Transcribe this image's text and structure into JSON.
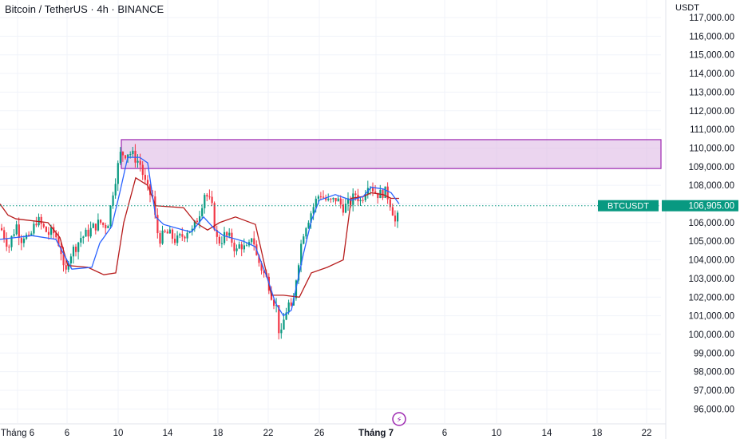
{
  "header": {
    "title": "Bitcoin / TetherUS · 4h · BINANCE",
    "unit": "USDT"
  },
  "price_tag": {
    "symbol": "BTCUSDT",
    "price": "106,905.00",
    "value": 106905,
    "color": "#089981"
  },
  "colors": {
    "up": "#089981",
    "down": "#f23645",
    "fast_line": "#2962ff",
    "slow_line": "#b71c1c",
    "zone_fill": "#e1bee7",
    "zone_border": "#9c27b0",
    "event_icon": "#9c27b0"
  },
  "chart_data": {
    "type": "candlestick",
    "y_axis": {
      "range": [
        95700,
        117500
      ],
      "ticks": [
        "117,000.00",
        "116,000.00",
        "115,000.00",
        "114,000.00",
        "113,000.00",
        "112,000.00",
        "111,000.00",
        "110,000.00",
        "109,000.00",
        "108,000.00",
        "107,000.00",
        "106,000.00",
        "105,000.00",
        "104,000.00",
        "103,000.00",
        "102,000.00",
        "101,000.00",
        "100,000.00",
        "99,000.00",
        "98,000.00",
        "97,000.00",
        "96,000.00"
      ]
    },
    "x_axis": {
      "ticks": [
        "Tháng 6",
        "6",
        "10",
        "14",
        "18",
        "22",
        "26",
        "Tháng 7",
        "6",
        "10",
        "14",
        "18",
        "22"
      ],
      "bold": [
        "Tháng 7"
      ]
    },
    "resistance_zone": {
      "low": 108900,
      "high": 110450
    },
    "event_marker": {
      "label": "⚡",
      "position": "Tháng 7"
    },
    "price_path": [
      [
        0,
        105700
      ],
      [
        5,
        105200
      ],
      [
        10,
        104700
      ],
      [
        15,
        105400
      ],
      [
        20,
        105900
      ],
      [
        25,
        105100
      ],
      [
        30,
        105400
      ],
      [
        35,
        105000
      ],
      [
        40,
        105600
      ],
      [
        45,
        106200
      ],
      [
        50,
        105900
      ],
      [
        55,
        105600
      ],
      [
        60,
        105400
      ],
      [
        65,
        105500
      ],
      [
        70,
        105200
      ],
      [
        75,
        104600
      ],
      [
        80,
        102900
      ],
      [
        85,
        104200
      ],
      [
        90,
        104500
      ],
      [
        95,
        104800
      ],
      [
        100,
        105200
      ],
      [
        105,
        105300
      ],
      [
        110,
        105500
      ],
      [
        115,
        105700
      ],
      [
        120,
        105900
      ],
      [
        125,
        106000
      ],
      [
        130,
        105800
      ],
      [
        135,
        106100
      ],
      [
        140,
        107600
      ],
      [
        145,
        108700
      ],
      [
        150,
        109700
      ],
      [
        155,
        109700
      ],
      [
        160,
        109800
      ],
      [
        165,
        109600
      ],
      [
        170,
        109400
      ],
      [
        175,
        109100
      ],
      [
        180,
        108200
      ],
      [
        185,
        107600
      ],
      [
        190,
        107400
      ],
      [
        195,
        105600
      ],
      [
        200,
        105100
      ],
      [
        205,
        105400
      ],
      [
        210,
        105400
      ],
      [
        215,
        105200
      ],
      [
        220,
        105000
      ],
      [
        225,
        105200
      ],
      [
        230,
        105400
      ],
      [
        235,
        105700
      ],
      [
        240,
        105500
      ],
      [
        245,
        106100
      ],
      [
        250,
        106700
      ],
      [
        255,
        107600
      ],
      [
        260,
        107300
      ],
      [
        265,
        106700
      ],
      [
        270,
        105100
      ],
      [
        275,
        105000
      ],
      [
        280,
        105300
      ],
      [
        285,
        105200
      ],
      [
        290,
        105000
      ],
      [
        295,
        104400
      ],
      [
        300,
        104900
      ],
      [
        305,
        104600
      ],
      [
        310,
        104500
      ],
      [
        315,
        105500
      ],
      [
        320,
        104200
      ],
      [
        325,
        103700
      ],
      [
        330,
        103200
      ],
      [
        335,
        102800
      ],
      [
        340,
        102000
      ],
      [
        345,
        101500
      ],
      [
        350,
        99600
      ],
      [
        355,
        100900
      ],
      [
        360,
        101700
      ],
      [
        365,
        101100
      ],
      [
        370,
        103100
      ],
      [
        375,
        104600
      ],
      [
        380,
        105700
      ],
      [
        385,
        106200
      ],
      [
        390,
        106700
      ],
      [
        395,
        107200
      ],
      [
        400,
        107600
      ],
      [
        405,
        107300
      ],
      [
        410,
        107100
      ],
      [
        415,
        107100
      ],
      [
        420,
        107300
      ],
      [
        425,
        107000
      ],
      [
        430,
        106800
      ],
      [
        435,
        107000
      ],
      [
        440,
        107200
      ],
      [
        445,
        107600
      ],
      [
        450,
        107100
      ],
      [
        455,
        107600
      ],
      [
        460,
        108200
      ],
      [
        465,
        107900
      ],
      [
        470,
        107600
      ],
      [
        475,
        107500
      ],
      [
        480,
        107700
      ],
      [
        485,
        107400
      ],
      [
        490,
        106800
      ],
      [
        495,
        105800
      ],
      [
        500,
        106900
      ]
    ],
    "fast_line": [
      [
        0,
        105100
      ],
      [
        40,
        105300
      ],
      [
        70,
        105100
      ],
      [
        90,
        103500
      ],
      [
        115,
        103600
      ],
      [
        125,
        104900
      ],
      [
        140,
        105800
      ],
      [
        150,
        107600
      ],
      [
        160,
        109500
      ],
      [
        175,
        109500
      ],
      [
        185,
        109200
      ],
      [
        195,
        106300
      ],
      [
        205,
        105900
      ],
      [
        230,
        105600
      ],
      [
        240,
        105500
      ],
      [
        255,
        106300
      ],
      [
        270,
        105600
      ],
      [
        280,
        105300
      ],
      [
        305,
        105000
      ],
      [
        320,
        104700
      ],
      [
        335,
        103000
      ],
      [
        345,
        101700
      ],
      [
        355,
        101000
      ],
      [
        365,
        101300
      ],
      [
        380,
        104300
      ],
      [
        390,
        106100
      ],
      [
        400,
        107200
      ],
      [
        420,
        107500
      ],
      [
        440,
        107200
      ],
      [
        455,
        107400
      ],
      [
        465,
        107900
      ],
      [
        480,
        107800
      ],
      [
        490,
        107600
      ],
      [
        500,
        107000
      ]
    ],
    "slow_line": [
      [
        0,
        107000
      ],
      [
        10,
        106400
      ],
      [
        20,
        106200
      ],
      [
        60,
        106000
      ],
      [
        75,
        105200
      ],
      [
        85,
        103700
      ],
      [
        110,
        103600
      ],
      [
        130,
        103200
      ],
      [
        145,
        103300
      ],
      [
        155,
        106000
      ],
      [
        170,
        108400
      ],
      [
        185,
        108000
      ],
      [
        195,
        106900
      ],
      [
        230,
        106800
      ],
      [
        245,
        106000
      ],
      [
        260,
        105600
      ],
      [
        275,
        106000
      ],
      [
        295,
        106300
      ],
      [
        320,
        105900
      ],
      [
        340,
        102100
      ],
      [
        355,
        102100
      ],
      [
        375,
        102000
      ],
      [
        390,
        103300
      ],
      [
        410,
        103600
      ],
      [
        430,
        104000
      ],
      [
        440,
        107300
      ],
      [
        455,
        107400
      ],
      [
        465,
        107600
      ],
      [
        480,
        107500
      ],
      [
        490,
        107300
      ],
      [
        500,
        107300
      ]
    ]
  }
}
